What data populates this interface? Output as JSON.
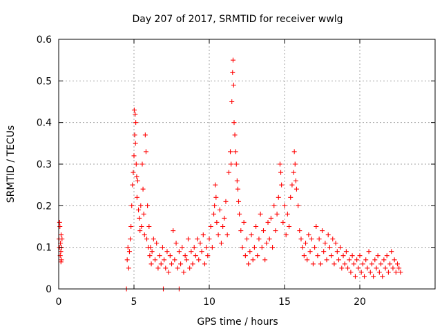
{
  "chart_data": {
    "type": "scatter",
    "title": "Day 207 of 2017, SRMTID for receiver wwlg",
    "xlabel": "GPS time / hours",
    "ylabel": "SRMTID / TECUs",
    "xlim": [
      0,
      25
    ],
    "ylim": [
      0,
      0.6
    ],
    "xticks": [
      0,
      5,
      10,
      15,
      20
    ],
    "yticks": [
      0,
      0.1,
      0.2,
      0.3,
      0.4,
      0.5,
      0.6
    ],
    "xtick_labels": [
      "0",
      "5",
      "10",
      "15",
      "20"
    ],
    "ytick_labels": [
      "0",
      "0.1",
      "0.2",
      "0.3",
      "0.4",
      "0.5",
      "0.6"
    ],
    "grid": true,
    "marker": "+",
    "color": "#ff0000",
    "series": [
      {
        "name": "SRMTID",
        "points": [
          [
            0.02,
            0.12
          ],
          [
            0.05,
            0.1
          ],
          [
            0.08,
            0.15
          ],
          [
            0.1,
            0.08
          ],
          [
            0.12,
            0.11
          ],
          [
            0.14,
            0.09
          ],
          [
            0.16,
            0.13
          ],
          [
            0.18,
            0.07
          ],
          [
            0.2,
            0.1
          ],
          [
            0.22,
            0.12
          ],
          [
            0.06,
            0.16
          ],
          [
            0.15,
            0.065
          ],
          [
            4.5,
            0.0
          ],
          [
            6.95,
            0.0
          ],
          [
            8.0,
            0.0
          ],
          [
            4.55,
            0.07
          ],
          [
            4.6,
            0.1
          ],
          [
            4.65,
            0.05
          ],
          [
            4.7,
            0.09
          ],
          [
            4.75,
            0.12
          ],
          [
            4.8,
            0.15
          ],
          [
            4.85,
            0.2
          ],
          [
            4.9,
            0.25
          ],
          [
            4.95,
            0.28
          ],
          [
            5.0,
            0.32
          ],
          [
            5.02,
            0.43
          ],
          [
            5.05,
            0.37
          ],
          [
            5.08,
            0.42
          ],
          [
            5.1,
            0.35
          ],
          [
            5.12,
            0.4
          ],
          [
            5.15,
            0.3
          ],
          [
            5.18,
            0.27
          ],
          [
            5.2,
            0.22
          ],
          [
            5.25,
            0.26
          ],
          [
            5.3,
            0.19
          ],
          [
            5.35,
            0.17
          ],
          [
            5.4,
            0.14
          ],
          [
            5.45,
            0.2
          ],
          [
            5.5,
            0.15
          ],
          [
            5.55,
            0.3
          ],
          [
            5.6,
            0.24
          ],
          [
            5.65,
            0.18
          ],
          [
            5.7,
            0.13
          ],
          [
            5.75,
            0.37
          ],
          [
            5.8,
            0.33
          ],
          [
            5.85,
            0.12
          ],
          [
            5.9,
            0.2
          ],
          [
            5.95,
            0.1
          ],
          [
            6.0,
            0.15
          ],
          [
            6.05,
            0.08
          ],
          [
            6.1,
            0.1
          ],
          [
            6.15,
            0.06
          ],
          [
            6.2,
            0.09
          ],
          [
            6.3,
            0.12
          ],
          [
            6.4,
            0.07
          ],
          [
            6.5,
            0.11
          ],
          [
            6.6,
            0.05
          ],
          [
            6.7,
            0.08
          ],
          [
            6.8,
            0.06
          ],
          [
            6.9,
            0.1
          ],
          [
            7.0,
            0.07
          ],
          [
            7.1,
            0.05
          ],
          [
            7.2,
            0.09
          ],
          [
            7.3,
            0.04
          ],
          [
            7.4,
            0.08
          ],
          [
            7.5,
            0.06
          ],
          [
            7.6,
            0.14
          ],
          [
            7.7,
            0.07
          ],
          [
            7.8,
            0.11
          ],
          [
            7.9,
            0.05
          ],
          [
            8.0,
            0.09
          ],
          [
            8.1,
            0.06
          ],
          [
            8.2,
            0.1
          ],
          [
            8.3,
            0.04
          ],
          [
            8.4,
            0.08
          ],
          [
            8.5,
            0.07
          ],
          [
            8.6,
            0.12
          ],
          [
            8.7,
            0.05
          ],
          [
            8.8,
            0.09
          ],
          [
            8.9,
            0.06
          ],
          [
            9.0,
            0.1
          ],
          [
            9.1,
            0.08
          ],
          [
            9.2,
            0.12
          ],
          [
            9.3,
            0.07
          ],
          [
            9.4,
            0.11
          ],
          [
            9.5,
            0.09
          ],
          [
            9.6,
            0.13
          ],
          [
            9.7,
            0.06
          ],
          [
            9.8,
            0.1
          ],
          [
            9.9,
            0.08
          ],
          [
            10.0,
            0.12
          ],
          [
            10.1,
            0.15
          ],
          [
            10.2,
            0.1
          ],
          [
            10.3,
            0.18
          ],
          [
            10.35,
            0.2
          ],
          [
            10.4,
            0.25
          ],
          [
            10.45,
            0.22
          ],
          [
            10.5,
            0.16
          ],
          [
            10.6,
            0.13
          ],
          [
            10.7,
            0.19
          ],
          [
            10.8,
            0.11
          ],
          [
            10.9,
            0.15
          ],
          [
            11.0,
            0.17
          ],
          [
            11.1,
            0.21
          ],
          [
            11.2,
            0.13
          ],
          [
            11.3,
            0.28
          ],
          [
            11.4,
            0.33
          ],
          [
            11.45,
            0.3
          ],
          [
            11.5,
            0.45
          ],
          [
            11.55,
            0.52
          ],
          [
            11.58,
            0.55
          ],
          [
            11.62,
            0.49
          ],
          [
            11.65,
            0.4
          ],
          [
            11.7,
            0.37
          ],
          [
            11.75,
            0.33
          ],
          [
            11.8,
            0.3
          ],
          [
            11.85,
            0.26
          ],
          [
            11.9,
            0.24
          ],
          [
            11.95,
            0.21
          ],
          [
            12.0,
            0.18
          ],
          [
            12.1,
            0.14
          ],
          [
            12.2,
            0.1
          ],
          [
            12.3,
            0.16
          ],
          [
            12.4,
            0.08
          ],
          [
            12.5,
            0.12
          ],
          [
            12.6,
            0.06
          ],
          [
            12.7,
            0.09
          ],
          [
            12.8,
            0.13
          ],
          [
            12.9,
            0.07
          ],
          [
            13.0,
            0.1
          ],
          [
            13.1,
            0.15
          ],
          [
            13.2,
            0.08
          ],
          [
            13.3,
            0.12
          ],
          [
            13.4,
            0.18
          ],
          [
            13.5,
            0.1
          ],
          [
            13.6,
            0.14
          ],
          [
            13.7,
            0.07
          ],
          [
            13.8,
            0.11
          ],
          [
            13.9,
            0.16
          ],
          [
            14.0,
            0.12
          ],
          [
            14.1,
            0.17
          ],
          [
            14.2,
            0.1
          ],
          [
            14.3,
            0.2
          ],
          [
            14.4,
            0.14
          ],
          [
            14.5,
            0.18
          ],
          [
            14.6,
            0.22
          ],
          [
            14.7,
            0.3
          ],
          [
            14.75,
            0.28
          ],
          [
            14.8,
            0.25
          ],
          [
            14.9,
            0.16
          ],
          [
            15.0,
            0.2
          ],
          [
            15.1,
            0.13
          ],
          [
            15.2,
            0.18
          ],
          [
            15.3,
            0.15
          ],
          [
            15.4,
            0.22
          ],
          [
            15.5,
            0.25
          ],
          [
            15.6,
            0.28
          ],
          [
            15.65,
            0.33
          ],
          [
            15.7,
            0.3
          ],
          [
            15.75,
            0.26
          ],
          [
            15.8,
            0.24
          ],
          [
            15.9,
            0.2
          ],
          [
            16.0,
            0.14
          ],
          [
            16.1,
            0.12
          ],
          [
            16.2,
            0.1
          ],
          [
            16.3,
            0.08
          ],
          [
            16.4,
            0.11
          ],
          [
            16.5,
            0.07
          ],
          [
            16.6,
            0.13
          ],
          [
            16.7,
            0.09
          ],
          [
            16.8,
            0.12
          ],
          [
            16.9,
            0.06
          ],
          [
            17.0,
            0.1
          ],
          [
            17.1,
            0.15
          ],
          [
            17.2,
            0.08
          ],
          [
            17.3,
            0.12
          ],
          [
            17.4,
            0.06
          ],
          [
            17.5,
            0.14
          ],
          [
            17.6,
            0.09
          ],
          [
            17.7,
            0.11
          ],
          [
            17.8,
            0.07
          ],
          [
            17.9,
            0.13
          ],
          [
            18.0,
            0.1
          ],
          [
            18.1,
            0.08
          ],
          [
            18.2,
            0.12
          ],
          [
            18.3,
            0.06
          ],
          [
            18.4,
            0.11
          ],
          [
            18.5,
            0.09
          ],
          [
            18.6,
            0.07
          ],
          [
            18.7,
            0.1
          ],
          [
            18.8,
            0.05
          ],
          [
            18.9,
            0.08
          ],
          [
            19.0,
            0.06
          ],
          [
            19.1,
            0.09
          ],
          [
            19.2,
            0.05
          ],
          [
            19.3,
            0.07
          ],
          [
            19.4,
            0.04
          ],
          [
            19.5,
            0.08
          ],
          [
            19.6,
            0.06
          ],
          [
            19.7,
            0.03
          ],
          [
            19.8,
            0.07
          ],
          [
            19.9,
            0.05
          ],
          [
            20.0,
            0.08
          ],
          [
            20.1,
            0.04
          ],
          [
            20.2,
            0.06
          ],
          [
            20.3,
            0.03
          ],
          [
            20.4,
            0.07
          ],
          [
            20.5,
            0.05
          ],
          [
            20.6,
            0.09
          ],
          [
            20.7,
            0.04
          ],
          [
            20.8,
            0.06
          ],
          [
            20.9,
            0.03
          ],
          [
            21.0,
            0.07
          ],
          [
            21.1,
            0.05
          ],
          [
            21.2,
            0.08
          ],
          [
            21.3,
            0.04
          ],
          [
            21.4,
            0.06
          ],
          [
            21.5,
            0.03
          ],
          [
            21.6,
            0.07
          ],
          [
            21.7,
            0.05
          ],
          [
            21.8,
            0.08
          ],
          [
            21.9,
            0.04
          ],
          [
            22.0,
            0.06
          ],
          [
            22.1,
            0.09
          ],
          [
            22.2,
            0.05
          ],
          [
            22.3,
            0.07
          ],
          [
            22.4,
            0.04
          ],
          [
            22.5,
            0.06
          ],
          [
            22.6,
            0.05
          ],
          [
            22.7,
            0.04
          ]
        ]
      }
    ]
  }
}
